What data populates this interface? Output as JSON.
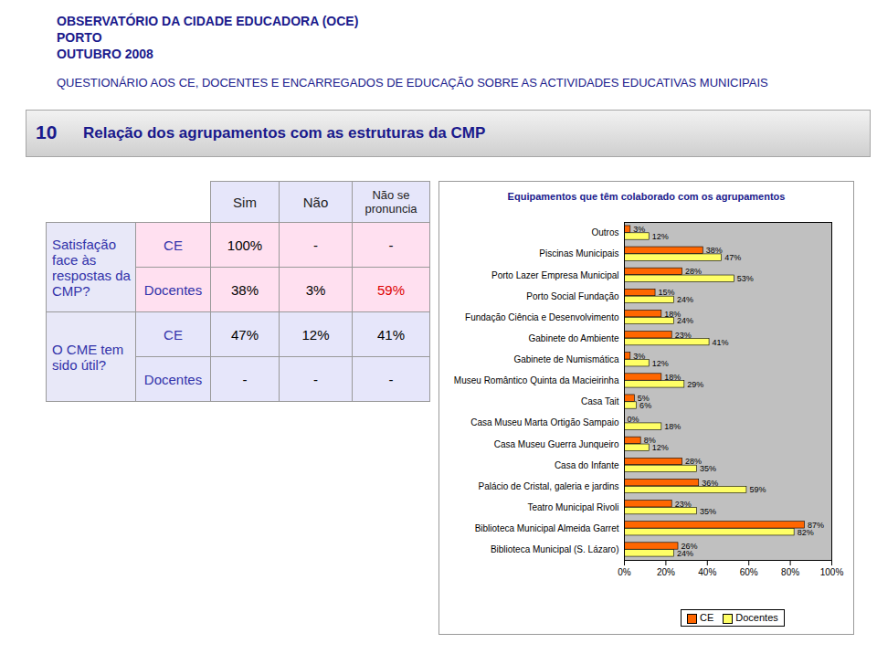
{
  "header": {
    "lines": [
      "OBSERVATÓRIO DA CIDADE EDUCADORA (OCE)",
      "PORTO",
      "OUTUBRO 2008"
    ],
    "subtitle": "QUESTIONÁRIO AOS CE, DOCENTES E ENCARREGADOS DE EDUCAÇÃO SOBRE AS ACTIVIDADES EDUCATIVAS MUNICIPAIS"
  },
  "section": {
    "number": "10",
    "title": "Relação dos agrupamentos com as estruturas da CMP"
  },
  "table": {
    "columns": [
      "Sim",
      "Não",
      "Não se pronuncia"
    ],
    "groups": [
      {
        "question": "Satisfação face às respostas da CMP?",
        "rows": [
          {
            "label": "CE",
            "cells": [
              "100%",
              "-",
              "-"
            ]
          },
          {
            "label": "Docentes",
            "cells": [
              "38%",
              "3%",
              "59%"
            ]
          }
        ]
      },
      {
        "question": "O CME tem sido útil?",
        "rows": [
          {
            "label": "CE",
            "cells": [
              "47%",
              "12%",
              "41%"
            ]
          },
          {
            "label": "Docentes",
            "cells": [
              "-",
              "-",
              "-"
            ]
          }
        ]
      }
    ]
  },
  "chart_data": {
    "type": "bar",
    "orientation": "horizontal",
    "title": "Equipamentos que têm colaborado com os agrupamentos",
    "categories": [
      "Outros",
      "Piscinas Municipais",
      "Porto Lazer Empresa Municipal",
      "Porto Social Fundação",
      "Fundação Ciência e Desenvolvimento",
      "Gabinete do Ambiente",
      "Gabinete de Numismática",
      "Museu Romântico Quinta da Macieirinha",
      "Casa Tait",
      "Casa Museu Marta Ortigão Sampaio",
      "Casa Museu Guerra Junqueiro",
      "Casa do Infante",
      "Palácio de Cristal, galeria e jardins",
      "Teatro Municipal Rivoli",
      "Biblioteca Municipal Almeida Garret",
      "Biblioteca Municipal (S. Lázaro)"
    ],
    "series": [
      {
        "name": "CE",
        "color": "#ff6600",
        "values": [
          3,
          38,
          28,
          15,
          18,
          23,
          3,
          18,
          5,
          0,
          8,
          28,
          36,
          23,
          87,
          26
        ],
        "value_labels": [
          "3%",
          "38%",
          "28%",
          "15%",
          "18%",
          "23%",
          "3%",
          "18%",
          "5%",
          "0%",
          "8%",
          "28%",
          "36%",
          "23%",
          "87%",
          "26%"
        ]
      },
      {
        "name": "Docentes",
        "color": "#ffff66",
        "values": [
          12,
          47,
          53,
          24,
          24,
          41,
          12,
          29,
          6,
          18,
          12,
          35,
          59,
          35,
          82,
          24
        ],
        "value_labels": [
          "12%",
          "47%",
          "53%",
          "24%",
          "24%",
          "41%",
          "12%",
          "29%",
          "6%",
          "18%",
          "12%",
          "35%",
          "59%",
          "35%",
          "82%",
          "24%"
        ]
      }
    ],
    "xlim": [
      0,
      100
    ],
    "xticks": [
      {
        "value": 0,
        "label": "0%"
      },
      {
        "value": 20,
        "label": "20%"
      },
      {
        "value": 40,
        "label": "40%"
      },
      {
        "value": 60,
        "label": "60%"
      },
      {
        "value": 80,
        "label": "80%"
      },
      {
        "value": 100,
        "label": "100%"
      }
    ],
    "data_labels": true,
    "grid": false,
    "legend": "bottom"
  }
}
